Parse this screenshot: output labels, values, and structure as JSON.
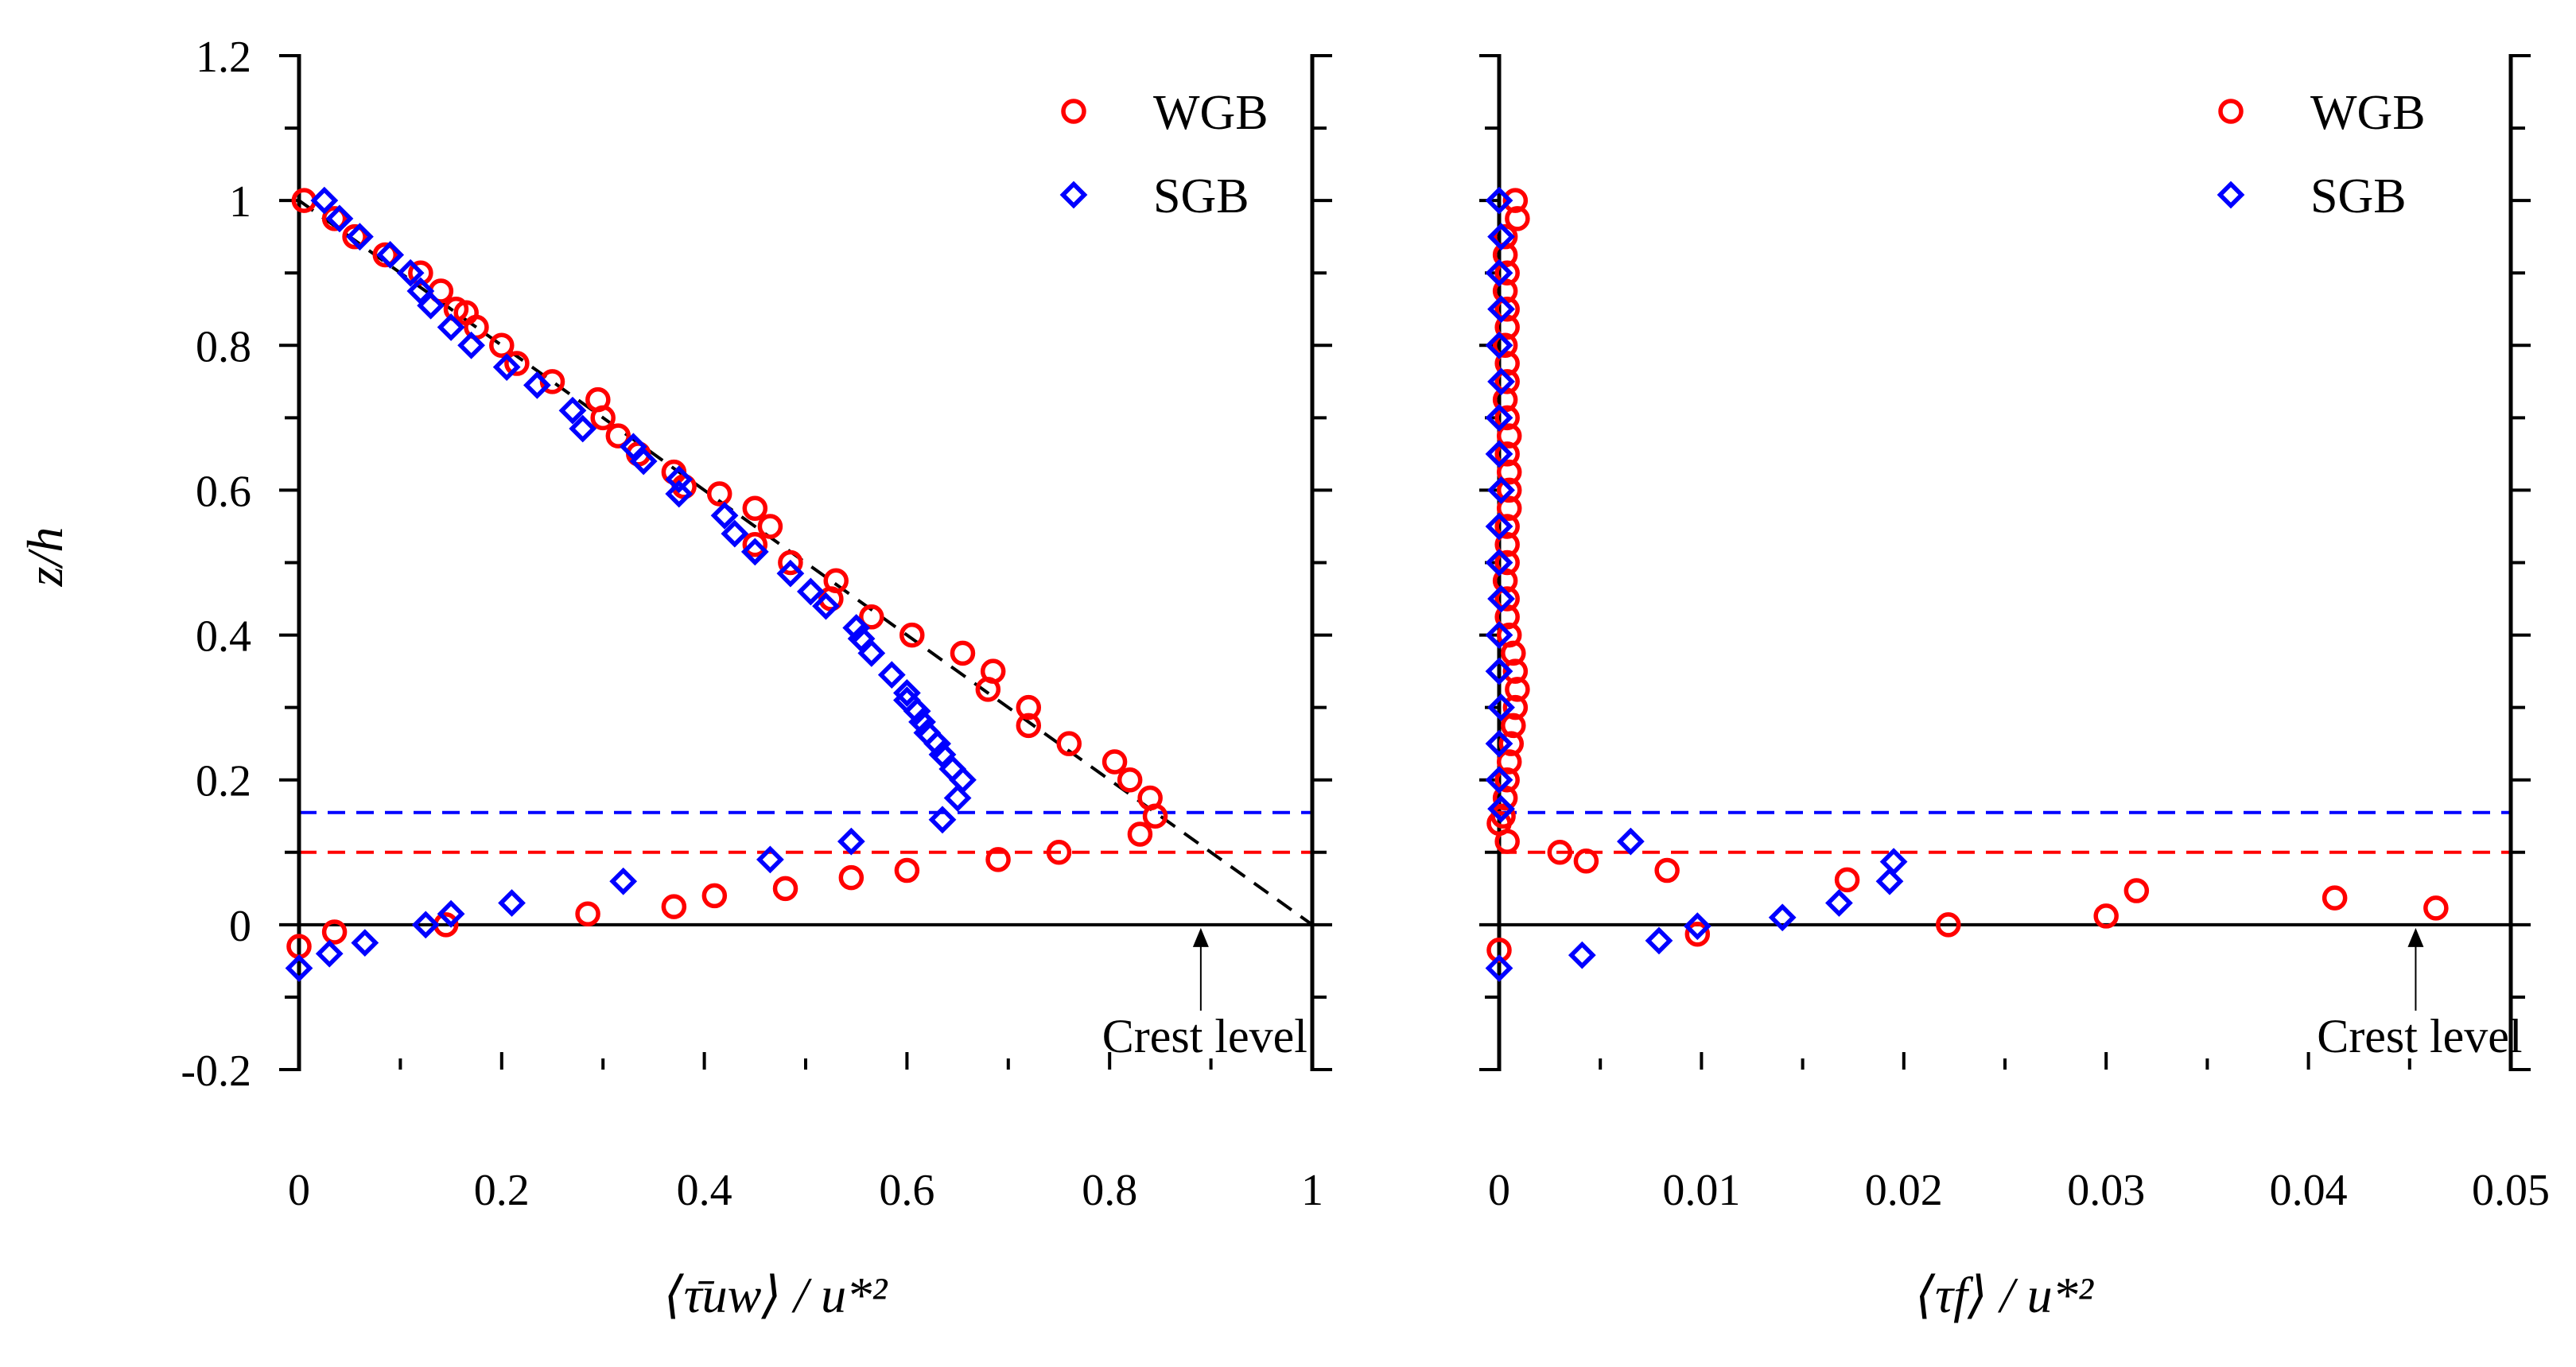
{
  "chart_data": [
    {
      "type": "scatter",
      "panel": "left",
      "title": "",
      "xlabel": "⟨τ̄uw⟩ / u*²",
      "ylabel": "z/h",
      "xlim": [
        0,
        1
      ],
      "ylim": [
        -0.2,
        1.2
      ],
      "xticks": [
        0,
        0.2,
        0.4,
        0.6,
        0.8,
        1
      ],
      "xtick_labels": [
        "0",
        "0.2",
        "0.4",
        "0.6",
        "0.8",
        "1"
      ],
      "yticks": [
        -0.2,
        0,
        0.2,
        0.4,
        0.6,
        0.8,
        1,
        1.2
      ],
      "ytick_labels": [
        "-0.2",
        "0",
        "0.2",
        "0.4",
        "0.6",
        "0.8",
        "1",
        "1.2"
      ],
      "legend_position": "top-right",
      "series": [
        {
          "name": "WGB",
          "marker": "circle",
          "color": "#ff0000",
          "points": [
            [
              0.005,
              1.0
            ],
            [
              0.035,
              0.975
            ],
            [
              0.055,
              0.95
            ],
            [
              0.085,
              0.925
            ],
            [
              0.12,
              0.9
            ],
            [
              0.14,
              0.875
            ],
            [
              0.155,
              0.85
            ],
            [
              0.165,
              0.845
            ],
            [
              0.175,
              0.825
            ],
            [
              0.2,
              0.8
            ],
            [
              0.215,
              0.775
            ],
            [
              0.25,
              0.75
            ],
            [
              0.295,
              0.725
            ],
            [
              0.3,
              0.7
            ],
            [
              0.315,
              0.675
            ],
            [
              0.335,
              0.65
            ],
            [
              0.37,
              0.625
            ],
            [
              0.38,
              0.605
            ],
            [
              0.415,
              0.595
            ],
            [
              0.45,
              0.575
            ],
            [
              0.465,
              0.55
            ],
            [
              0.45,
              0.525
            ],
            [
              0.485,
              0.5
            ],
            [
              0.53,
              0.475
            ],
            [
              0.525,
              0.45
            ],
            [
              0.565,
              0.425
            ],
            [
              0.605,
              0.4
            ],
            [
              0.655,
              0.375
            ],
            [
              0.685,
              0.35
            ],
            [
              0.68,
              0.325
            ],
            [
              0.72,
              0.3
            ],
            [
              0.72,
              0.275
            ],
            [
              0.76,
              0.25
            ],
            [
              0.805,
              0.225
            ],
            [
              0.82,
              0.2
            ],
            [
              0.84,
              0.175
            ],
            [
              0.845,
              0.15
            ],
            [
              0.83,
              0.125
            ],
            [
              0.75,
              0.1
            ],
            [
              0.69,
              0.09
            ],
            [
              0.6,
              0.075
            ],
            [
              0.545,
              0.065
            ],
            [
              0.48,
              0.05
            ],
            [
              0.41,
              0.04
            ],
            [
              0.37,
              0.025
            ],
            [
              0.285,
              0.015
            ],
            [
              0.145,
              0.0
            ],
            [
              0.035,
              -0.01
            ],
            [
              0.0,
              -0.03
            ]
          ]
        },
        {
          "name": "SGB",
          "marker": "diamond",
          "color": "#0000ff",
          "points": [
            [
              0.025,
              1.0
            ],
            [
              0.04,
              0.975
            ],
            [
              0.06,
              0.95
            ],
            [
              0.09,
              0.925
            ],
            [
              0.11,
              0.9
            ],
            [
              0.12,
              0.875
            ],
            [
              0.13,
              0.855
            ],
            [
              0.15,
              0.825
            ],
            [
              0.17,
              0.8
            ],
            [
              0.205,
              0.77
            ],
            [
              0.235,
              0.745
            ],
            [
              0.27,
              0.71
            ],
            [
              0.28,
              0.685
            ],
            [
              0.33,
              0.66
            ],
            [
              0.34,
              0.64
            ],
            [
              0.375,
              0.615
            ],
            [
              0.375,
              0.595
            ],
            [
              0.42,
              0.565
            ],
            [
              0.43,
              0.54
            ],
            [
              0.45,
              0.515
            ],
            [
              0.485,
              0.485
            ],
            [
              0.505,
              0.46
            ],
            [
              0.52,
              0.44
            ],
            [
              0.55,
              0.41
            ],
            [
              0.555,
              0.395
            ],
            [
              0.565,
              0.375
            ],
            [
              0.585,
              0.345
            ],
            [
              0.6,
              0.32
            ],
            [
              0.6,
              0.31
            ],
            [
              0.61,
              0.295
            ],
            [
              0.615,
              0.28
            ],
            [
              0.62,
              0.265
            ],
            [
              0.63,
              0.25
            ],
            [
              0.635,
              0.235
            ],
            [
              0.645,
              0.215
            ],
            [
              0.655,
              0.2
            ],
            [
              0.65,
              0.175
            ],
            [
              0.635,
              0.145
            ],
            [
              0.545,
              0.115
            ],
            [
              0.465,
              0.09
            ],
            [
              0.32,
              0.06
            ],
            [
              0.21,
              0.03
            ],
            [
              0.15,
              0.015
            ],
            [
              0.125,
              0.0
            ],
            [
              0.065,
              -0.025
            ],
            [
              0.03,
              -0.04
            ],
            [
              0.0,
              -0.06
            ]
          ]
        }
      ],
      "reference_lines": [
        {
          "type": "dashed-diagonal",
          "color": "#000000",
          "from": [
            0,
            1
          ],
          "to": [
            1,
            0
          ]
        },
        {
          "type": "horizontal-dashed",
          "color": "#0000ff",
          "y": 0.155
        },
        {
          "type": "horizontal-dashed",
          "color": "#ff0000",
          "y": 0.1
        },
        {
          "type": "horizontal-solid",
          "color": "#000000",
          "y": 0
        }
      ],
      "annotation": {
        "text": "Crest level",
        "x": 0.89,
        "y": 0.0
      }
    },
    {
      "type": "scatter",
      "panel": "right",
      "title": "",
      "xlabel": "⟨τf⟩ / u*²",
      "ylabel": "",
      "xlim": [
        0,
        0.05
      ],
      "ylim": [
        -0.2,
        1.2
      ],
      "xticks": [
        0,
        0.01,
        0.02,
        0.03,
        0.04,
        0.05
      ],
      "xtick_labels": [
        "0",
        "0.01",
        "0.02",
        "0.03",
        "0.04",
        "0.05"
      ],
      "yticks": [
        -0.2,
        0,
        0.2,
        0.4,
        0.6,
        0.8,
        1,
        1.2
      ],
      "legend_position": "top-right",
      "series": [
        {
          "name": "WGB",
          "marker": "circle",
          "color": "#ff0000",
          "points": [
            [
              0.0008,
              1.0
            ],
            [
              0.0009,
              0.975
            ],
            [
              0.0003,
              0.95
            ],
            [
              0.0003,
              0.925
            ],
            [
              0.0004,
              0.9
            ],
            [
              0.0003,
              0.875
            ],
            [
              0.0004,
              0.85
            ],
            [
              0.0004,
              0.825
            ],
            [
              0.0003,
              0.8
            ],
            [
              0.0004,
              0.775
            ],
            [
              0.0004,
              0.75
            ],
            [
              0.0003,
              0.725
            ],
            [
              0.0004,
              0.7
            ],
            [
              0.0005,
              0.675
            ],
            [
              0.0004,
              0.65
            ],
            [
              0.0005,
              0.625
            ],
            [
              0.0005,
              0.6
            ],
            [
              0.0005,
              0.575
            ],
            [
              0.0004,
              0.55
            ],
            [
              0.0004,
              0.525
            ],
            [
              0.0004,
              0.5
            ],
            [
              0.0003,
              0.475
            ],
            [
              0.0004,
              0.45
            ],
            [
              0.0004,
              0.425
            ],
            [
              0.0005,
              0.4
            ],
            [
              0.0007,
              0.375
            ],
            [
              0.0008,
              0.35
            ],
            [
              0.0009,
              0.325
            ],
            [
              0.0008,
              0.3
            ],
            [
              0.0007,
              0.275
            ],
            [
              0.0006,
              0.25
            ],
            [
              0.0005,
              0.225
            ],
            [
              0.0004,
              0.2
            ],
            [
              0.0003,
              0.175
            ],
            [
              0.0002,
              0.15
            ],
            [
              0.0,
              0.14
            ],
            [
              0.0004,
              0.115
            ],
            [
              0.003,
              0.1
            ],
            [
              0.0043,
              0.088
            ],
            [
              0.0083,
              0.075
            ],
            [
              0.0172,
              0.062
            ],
            [
              0.0315,
              0.047
            ],
            [
              0.0413,
              0.037
            ],
            [
              0.0463,
              0.023
            ],
            [
              0.03,
              0.012
            ],
            [
              0.0222,
              0.0
            ],
            [
              0.0098,
              -0.013
            ],
            [
              0.0,
              -0.035
            ]
          ]
        },
        {
          "name": "SGB",
          "marker": "diamond",
          "color": "#0000ff",
          "points": [
            [
              0.0,
              1.0
            ],
            [
              0.0001,
              0.95
            ],
            [
              0.0,
              0.9
            ],
            [
              0.0001,
              0.85
            ],
            [
              0.0,
              0.8
            ],
            [
              0.0001,
              0.75
            ],
            [
              0.0,
              0.7
            ],
            [
              0.0,
              0.65
            ],
            [
              0.0001,
              0.6
            ],
            [
              0.0,
              0.55
            ],
            [
              0.0,
              0.5
            ],
            [
              0.0001,
              0.45
            ],
            [
              0.0,
              0.4
            ],
            [
              0.0,
              0.35
            ],
            [
              0.0001,
              0.3
            ],
            [
              0.0,
              0.25
            ],
            [
              0.0,
              0.2
            ],
            [
              0.0001,
              0.16
            ],
            [
              0.0065,
              0.115
            ],
            [
              0.0195,
              0.087
            ],
            [
              0.0193,
              0.06
            ],
            [
              0.0168,
              0.03
            ],
            [
              0.014,
              0.01
            ],
            [
              0.0098,
              -0.002
            ],
            [
              0.0079,
              -0.022
            ],
            [
              0.0041,
              -0.042
            ],
            [
              0.0,
              -0.06
            ]
          ]
        }
      ],
      "reference_lines": [
        {
          "type": "horizontal-dashed",
          "color": "#0000ff",
          "y": 0.155
        },
        {
          "type": "horizontal-dashed",
          "color": "#ff0000",
          "y": 0.1
        },
        {
          "type": "horizontal-solid",
          "color": "#000000",
          "y": 0
        }
      ],
      "annotation": {
        "text": "Crest level",
        "x": 0.0453,
        "y": 0.0
      }
    }
  ]
}
